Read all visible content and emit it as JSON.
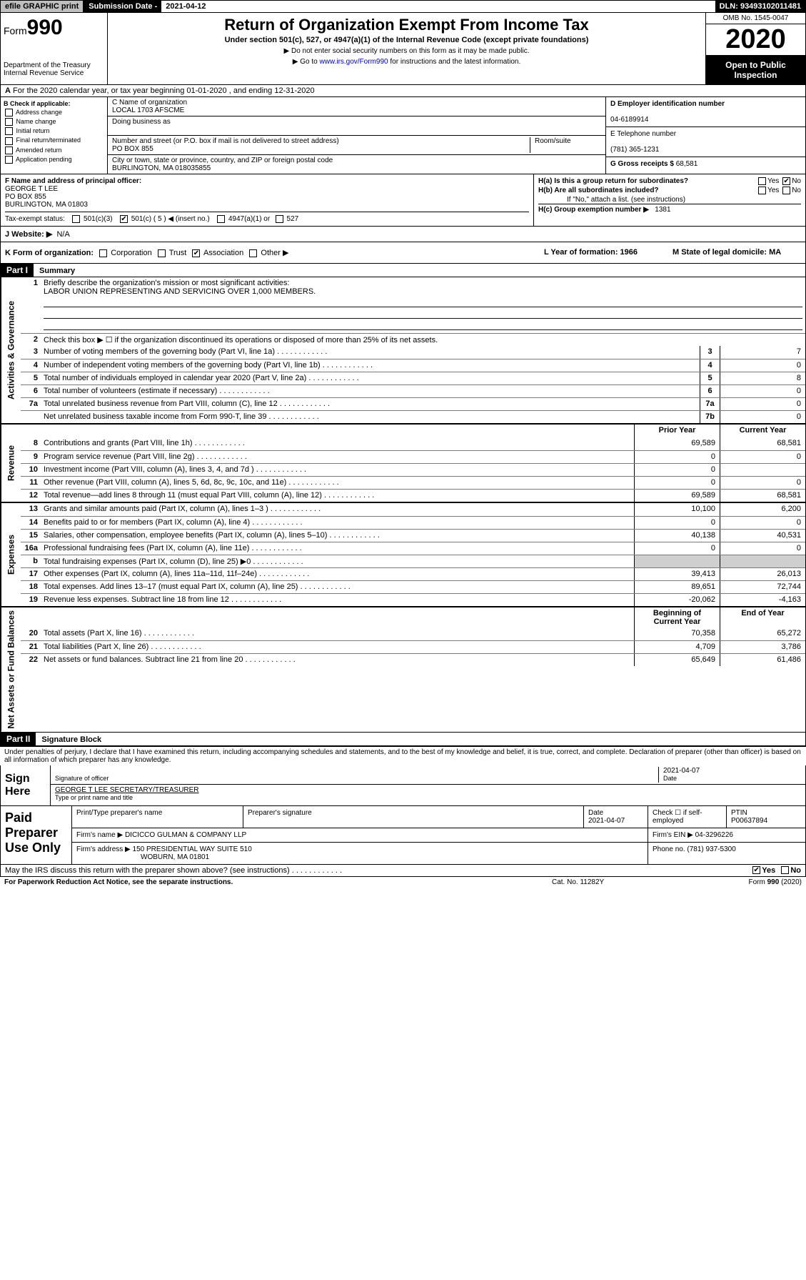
{
  "topbar": {
    "efile": "efile GRAPHIC print",
    "sub_label": "Submission Date - ",
    "sub_date": "2021-04-12",
    "dln": "DLN: 93493102011481"
  },
  "header": {
    "form_prefix": "Form",
    "form_num": "990",
    "dept": "Department of the Treasury\nInternal Revenue Service",
    "title": "Return of Organization Exempt From Income Tax",
    "subtitle": "Under section 501(c), 527, or 4947(a)(1) of the Internal Revenue Code (except private foundations)",
    "note1": "▶ Do not enter social security numbers on this form as it may be made public.",
    "note2": "▶ Go to www.irs.gov/Form990 for instructions and the latest information.",
    "link": "www.irs.gov/Form990",
    "omb": "OMB No. 1545-0047",
    "year": "2020",
    "open": "Open to Public Inspection"
  },
  "row_a": "For the 2020 calendar year, or tax year beginning 01-01-2020   , and ending 12-31-2020",
  "col_b": {
    "head": "B Check if applicable:",
    "items": [
      "Address change",
      "Name change",
      "Initial return",
      "Final return/terminated",
      "Amended return",
      "Application pending"
    ]
  },
  "col_c": {
    "name_label": "C Name of organization",
    "name": "LOCAL 1703 AFSCME",
    "dba_label": "Doing business as",
    "dba": "",
    "addr_label": "Number and street (or P.O. box if mail is not delivered to street address)",
    "addr": "PO BOX 855",
    "room_label": "Room/suite",
    "city_label": "City or town, state or province, country, and ZIP or foreign postal code",
    "city": "BURLINGTON, MA  018035855"
  },
  "col_de": {
    "d_label": "D Employer identification number",
    "d_val": "04-6189914",
    "e_label": "E Telephone number",
    "e_val": "(781) 365-1231",
    "g_label": "G Gross receipts $",
    "g_val": "68,581"
  },
  "col_f": {
    "label": "F  Name and address of principal officer:",
    "name": "GEORGE T LEE",
    "addr1": "PO BOX 855",
    "addr2": "BURLINGTON, MA  01803"
  },
  "col_h": {
    "ha": "H(a)  Is this a group return for subordinates?",
    "hb": "H(b)  Are all subordinates included?",
    "hb_note": "If \"No,\" attach a list. (see instructions)",
    "hc": "H(c)  Group exemption number ▶",
    "hc_val": "1381"
  },
  "tax_status": {
    "label": "Tax-exempt status:",
    "c3": "501(c)(3)",
    "c": "501(c) ( 5 ) ◀ (insert no.)",
    "a1": "4947(a)(1) or",
    "s527": "527"
  },
  "row_j": {
    "label": "J  Website: ▶",
    "val": "N/A"
  },
  "row_k": {
    "label": "K Form of organization:",
    "opts": [
      "Corporation",
      "Trust",
      "Association",
      "Other ▶"
    ],
    "l": "L Year of formation: 1966",
    "m": "M State of legal domicile: MA"
  },
  "parts": {
    "p1": "Part I",
    "p1_title": "Summary",
    "p2": "Part II",
    "p2_title": "Signature Block"
  },
  "summary": {
    "line1": "Briefly describe the organization's mission or most significant activities:",
    "mission": "LABOR UNION REPRESENTING AND SERVICING OVER 1,000 MEMBERS.",
    "line2": "Check this box ▶ ☐  if the organization discontinued its operations or disposed of more than 25% of its net assets.",
    "rows_gov": [
      {
        "n": "3",
        "t": "Number of voting members of the governing body (Part VI, line 1a)",
        "box": "3",
        "v": "7"
      },
      {
        "n": "4",
        "t": "Number of independent voting members of the governing body (Part VI, line 1b)",
        "box": "4",
        "v": "0"
      },
      {
        "n": "5",
        "t": "Total number of individuals employed in calendar year 2020 (Part V, line 2a)",
        "box": "5",
        "v": "8"
      },
      {
        "n": "6",
        "t": "Total number of volunteers (estimate if necessary)",
        "box": "6",
        "v": "0"
      },
      {
        "n": "7a",
        "t": "Total unrelated business revenue from Part VIII, column (C), line 12",
        "box": "7a",
        "v": "0"
      },
      {
        "n": "",
        "t": "Net unrelated business taxable income from Form 990-T, line 39",
        "box": "7b",
        "v": "0"
      }
    ],
    "hdr_prior": "Prior Year",
    "hdr_curr": "Current Year",
    "rows_rev": [
      {
        "n": "8",
        "t": "Contributions and grants (Part VIII, line 1h)",
        "p": "69,589",
        "c": "68,581"
      },
      {
        "n": "9",
        "t": "Program service revenue (Part VIII, line 2g)",
        "p": "0",
        "c": "0"
      },
      {
        "n": "10",
        "t": "Investment income (Part VIII, column (A), lines 3, 4, and 7d )",
        "p": "0",
        "c": ""
      },
      {
        "n": "11",
        "t": "Other revenue (Part VIII, column (A), lines 5, 6d, 8c, 9c, 10c, and 11e)",
        "p": "0",
        "c": "0"
      },
      {
        "n": "12",
        "t": "Total revenue—add lines 8 through 11 (must equal Part VIII, column (A), line 12)",
        "p": "69,589",
        "c": "68,581"
      }
    ],
    "rows_exp": [
      {
        "n": "13",
        "t": "Grants and similar amounts paid (Part IX, column (A), lines 1–3 )",
        "p": "10,100",
        "c": "6,200"
      },
      {
        "n": "14",
        "t": "Benefits paid to or for members (Part IX, column (A), line 4)",
        "p": "0",
        "c": "0"
      },
      {
        "n": "15",
        "t": "Salaries, other compensation, employee benefits (Part IX, column (A), lines 5–10)",
        "p": "40,138",
        "c": "40,531"
      },
      {
        "n": "16a",
        "t": "Professional fundraising fees (Part IX, column (A), line 11e)",
        "p": "0",
        "c": "0"
      },
      {
        "n": "b",
        "t": "Total fundraising expenses (Part IX, column (D), line 25) ▶0",
        "p": "",
        "c": "",
        "shaded": true
      },
      {
        "n": "17",
        "t": "Other expenses (Part IX, column (A), lines 11a–11d, 11f–24e)",
        "p": "39,413",
        "c": "26,013"
      },
      {
        "n": "18",
        "t": "Total expenses. Add lines 13–17 (must equal Part IX, column (A), line 25)",
        "p": "89,651",
        "c": "72,744"
      },
      {
        "n": "19",
        "t": "Revenue less expenses. Subtract line 18 from line 12",
        "p": "-20,062",
        "c": "-4,163"
      }
    ],
    "hdr_beg": "Beginning of Current Year",
    "hdr_end": "End of Year",
    "rows_net": [
      {
        "n": "20",
        "t": "Total assets (Part X, line 16)",
        "p": "70,358",
        "c": "65,272"
      },
      {
        "n": "21",
        "t": "Total liabilities (Part X, line 26)",
        "p": "4,709",
        "c": "3,786"
      },
      {
        "n": "22",
        "t": "Net assets or fund balances. Subtract line 21 from line 20",
        "p": "65,649",
        "c": "61,486"
      }
    ]
  },
  "sig": {
    "intro": "Under penalties of perjury, I declare that I have examined this return, including accompanying schedules and statements, and to the best of my knowledge and belief, it is true, correct, and complete. Declaration of preparer (other than officer) is based on all information of which preparer has any knowledge.",
    "sign_here": "Sign Here",
    "sig_officer": "Signature of officer",
    "date": "2021-04-07",
    "date_label": "Date",
    "name": "GEORGE T LEE SECRETARY/TREASURER",
    "name_label": "Type or print name and title"
  },
  "paid": {
    "title": "Paid Preparer Use Only",
    "h1": "Print/Type preparer's name",
    "h2": "Preparer's signature",
    "h3": "Date",
    "h3v": "2021-04-07",
    "h4": "Check ☐ if self-employed",
    "h5": "PTIN",
    "h5v": "P00637894",
    "firm_label": "Firm's name    ▶",
    "firm": "DICICCO GULMAN & COMPANY LLP",
    "ein_label": "Firm's EIN ▶",
    "ein": "04-3296226",
    "addr_label": "Firm's address ▶",
    "addr1": "150 PRESIDENTIAL WAY SUITE 510",
    "addr2": "WOBURN, MA  01801",
    "phone_label": "Phone no.",
    "phone": "(781) 937-5300"
  },
  "discuss": "May the IRS discuss this return with the preparer shown above? (see instructions)",
  "footer": {
    "pra": "For Paperwork Reduction Act Notice, see the separate instructions.",
    "cat": "Cat. No. 11282Y",
    "form": "Form 990 (2020)"
  },
  "yesno": {
    "yes": "Yes",
    "no": "No"
  },
  "vtabs": {
    "gov": "Activities & Governance",
    "rev": "Revenue",
    "exp": "Expenses",
    "net": "Net Assets or Fund Balances"
  }
}
